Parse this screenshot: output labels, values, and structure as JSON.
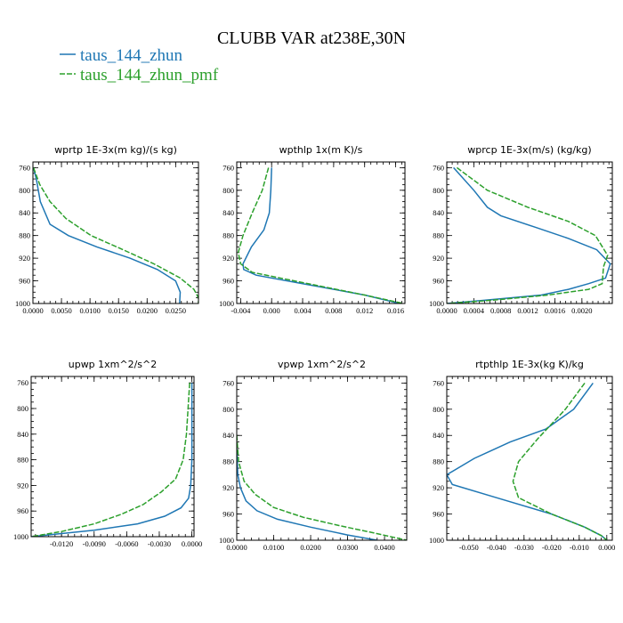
{
  "figure": {
    "title": "CLUBB VAR at238E,30N",
    "legend": [
      {
        "label": "taus_144_zhun",
        "color": "#1f77b4",
        "dash": "solid"
      },
      {
        "label": "taus_144_zhun_pmf",
        "color": "#2ca02c",
        "dash": "dashed"
      }
    ]
  },
  "chart_data": [
    {
      "type": "line",
      "title": "wprtp  1E-3x(m kg)/(s kg)",
      "xlim": [
        0,
        0.029
      ],
      "ylim": [
        1000,
        750
      ],
      "xticks": [
        0,
        0.005,
        0.01,
        0.015,
        0.02,
        0.025
      ],
      "xtick_labels": [
        "0.0000",
        "0.0050",
        "0.0100",
        "0.0150",
        "0.0200",
        "0.0250"
      ],
      "yticks": [
        760,
        800,
        840,
        880,
        920,
        960,
        1000
      ],
      "ytick_labels": [
        "760",
        "800",
        "840",
        "880",
        "920",
        "960",
        "1000"
      ],
      "series": [
        {
          "name": "taus_144_zhun",
          "x": [
            0.0001,
            0.0006,
            0.0013,
            0.003,
            0.0062,
            0.0112,
            0.017,
            0.0218,
            0.025,
            0.0258,
            0.0257
          ],
          "y": [
            760,
            780,
            820,
            860,
            880,
            900,
            920,
            940,
            960,
            980,
            1000
          ]
        },
        {
          "name": "taus_144_zhun_pmf",
          "x": [
            0.0001,
            0.0012,
            0.003,
            0.0058,
            0.0102,
            0.0158,
            0.0212,
            0.0258,
            0.0282,
            0.029,
            0.029
          ],
          "y": [
            760,
            790,
            820,
            850,
            880,
            905,
            930,
            955,
            975,
            990,
            1000
          ]
        }
      ]
    },
    {
      "type": "line",
      "title": "wpthlp  1x(m K)/s",
      "xlim": [
        -0.0045,
        0.0172
      ],
      "ylim": [
        1000,
        750
      ],
      "xticks": [
        -0.004,
        0,
        0.004,
        0.008,
        0.012,
        0.016
      ],
      "xtick_labels": [
        "-0.004",
        "0.000",
        "0.004",
        "0.008",
        "0.012",
        "0.016"
      ],
      "yticks": [
        760,
        800,
        840,
        880,
        920,
        960,
        1000
      ],
      "ytick_labels": [
        "760",
        "800",
        "840",
        "880",
        "920",
        "960",
        "1000"
      ],
      "series": [
        {
          "name": "taus_144_zhun",
          "x": [
            0.0,
            -0.0001,
            -0.0003,
            -0.001,
            -0.0026,
            -0.0037,
            -0.0036,
            -0.002,
            0.004,
            0.012,
            0.0165
          ],
          "y": [
            760,
            800,
            840,
            870,
            900,
            930,
            940,
            950,
            965,
            985,
            1000
          ]
        },
        {
          "name": "taus_144_zhun_pmf",
          "x": [
            -0.0004,
            -0.0012,
            -0.0025,
            -0.0037,
            -0.0043,
            -0.004,
            -0.0025,
            0.004,
            0.012,
            0.017
          ],
          "y": [
            760,
            800,
            840,
            880,
            910,
            930,
            945,
            963,
            985,
            1000
          ]
        }
      ]
    },
    {
      "type": "line",
      "title": "wprcp  1E-3x(m/s) (kg/kg)",
      "xlim": [
        0,
        0.00245
      ],
      "ylim": [
        1000,
        750
      ],
      "xticks": [
        0,
        0.0004,
        0.0008,
        0.0012,
        0.0016,
        0.002
      ],
      "xtick_labels": [
        "0.0000",
        "0.0004",
        "0.0008",
        "0.0012",
        "0.0016",
        "0.0020"
      ],
      "yticks": [
        760,
        800,
        840,
        880,
        920,
        960,
        1000
      ],
      "ytick_labels": [
        "760",
        "800",
        "840",
        "880",
        "920",
        "960",
        "1000"
      ],
      "series": [
        {
          "name": "taus_144_zhun",
          "x": [
            0.0001,
            0.0004,
            0.0006,
            0.0008,
            0.0013,
            0.0018,
            0.00222,
            0.00242,
            0.00235,
            0.0021,
            0.0018,
            0.0014,
            0.0005,
            0.0
          ],
          "y": [
            760,
            800,
            830,
            845,
            865,
            885,
            905,
            930,
            955,
            965,
            975,
            985,
            995,
            1000
          ]
        },
        {
          "name": "taus_144_zhun_pmf",
          "x": [
            0.00015,
            0.0006,
            0.0012,
            0.0018,
            0.0022,
            0.00238,
            0.00232,
            0.0023,
            0.0021,
            0.0015,
            0.0006,
            0.0
          ],
          "y": [
            760,
            800,
            830,
            855,
            880,
            915,
            935,
            965,
            975,
            985,
            995,
            1000
          ]
        }
      ]
    },
    {
      "type": "line",
      "title": "upwp  1xm^2/s^2",
      "xlim": [
        -0.0148,
        0.0002
      ],
      "ylim": [
        1000,
        750
      ],
      "xticks": [
        -0.012,
        -0.009,
        -0.006,
        -0.003,
        0
      ],
      "xtick_labels": [
        "-0.0120",
        "-0.0090",
        "-0.0060",
        "-0.0030",
        "0.0000"
      ],
      "yticks": [
        760,
        800,
        840,
        880,
        920,
        960,
        1000
      ],
      "ytick_labels": [
        "760",
        "800",
        "840",
        "880",
        "920",
        "960",
        "1000"
      ],
      "series": [
        {
          "name": "taus_144_zhun",
          "x": [
            0.0,
            0.0,
            -0.0001,
            -0.0003,
            -0.001,
            -0.0025,
            -0.005,
            -0.009,
            -0.013,
            -0.0148
          ],
          "y": [
            760,
            880,
            920,
            940,
            955,
            968,
            980,
            990,
            997,
            1000
          ]
        },
        {
          "name": "taus_144_zhun_pmf",
          "x": [
            -0.0002,
            -0.0005,
            -0.0008,
            -0.0015,
            -0.0028,
            -0.0045,
            -0.0065,
            -0.009,
            -0.012,
            -0.0148
          ],
          "y": [
            760,
            840,
            880,
            910,
            930,
            950,
            965,
            980,
            992,
            1000
          ]
        }
      ]
    },
    {
      "type": "line",
      "title": "vpwp  1xm^2/s^2",
      "xlim": [
        0,
        0.046
      ],
      "ylim": [
        1000,
        750
      ],
      "xticks": [
        0,
        0.01,
        0.02,
        0.03,
        0.04
      ],
      "xtick_labels": [
        "0.0000",
        "0.0100",
        "0.0200",
        "0.0300",
        "0.0400"
      ],
      "yticks": [
        760,
        800,
        840,
        880,
        920,
        960,
        1000
      ],
      "ytick_labels": [
        "760",
        "800",
        "840",
        "880",
        "920",
        "960",
        "1000"
      ],
      "series": [
        {
          "name": "taus_144_zhun",
          "x": [
            0.0,
            0.0003,
            0.001,
            0.0025,
            0.0055,
            0.011,
            0.02,
            0.03,
            0.038
          ],
          "y": [
            860,
            900,
            920,
            940,
            955,
            968,
            980,
            992,
            1000
          ]
        },
        {
          "name": "taus_144_zhun_pmf",
          "x": [
            0.0,
            0.0005,
            0.002,
            0.005,
            0.01,
            0.018,
            0.028,
            0.038,
            0.046
          ],
          "y": [
            840,
            880,
            910,
            930,
            950,
            965,
            978,
            990,
            1000
          ]
        }
      ]
    },
    {
      "type": "line",
      "title": "rtpthlp  1E-3x(kg K)/kg",
      "xlim": [
        -0.058,
        0.002
      ],
      "ylim": [
        1000,
        750
      ],
      "xticks": [
        -0.05,
        -0.04,
        -0.03,
        -0.02,
        -0.01,
        0
      ],
      "xtick_labels": [
        "-0.050",
        "-0.040",
        "-0.030",
        "-0.020",
        "-0.010",
        "0.000"
      ],
      "yticks": [
        760,
        800,
        840,
        880,
        920,
        960,
        1000
      ],
      "ytick_labels": [
        "760",
        "800",
        "840",
        "880",
        "920",
        "960",
        "1000"
      ],
      "series": [
        {
          "name": "taus_144_zhun",
          "x": [
            -0.005,
            -0.012,
            -0.022,
            -0.035,
            -0.048,
            -0.058,
            -0.056,
            -0.04,
            -0.02,
            -0.008,
            -0.002,
            0.0
          ],
          "y": [
            760,
            800,
            830,
            850,
            875,
            900,
            915,
            935,
            960,
            980,
            993,
            1000
          ]
        },
        {
          "name": "taus_144_zhun_pmf",
          "x": [
            -0.008,
            -0.015,
            -0.025,
            -0.032,
            -0.034,
            -0.032,
            -0.02,
            -0.008,
            -0.002,
            0.0
          ],
          "y": [
            760,
            800,
            845,
            880,
            910,
            935,
            960,
            980,
            993,
            1000
          ]
        }
      ]
    }
  ]
}
